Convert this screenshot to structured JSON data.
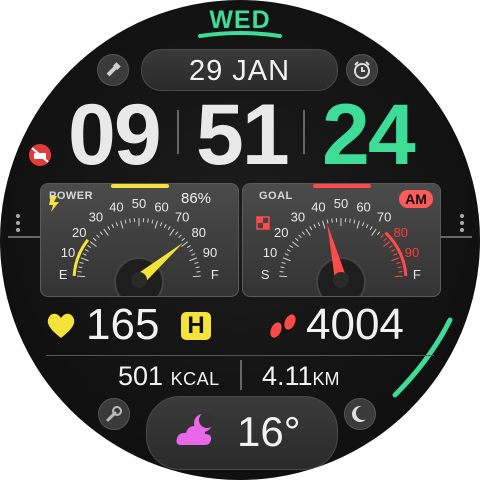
{
  "day": "WED",
  "date": "29 JAN",
  "time": {
    "hours": "09",
    "minutes": "51",
    "seconds": "24"
  },
  "power": {
    "title": "POWER",
    "percent": "86%",
    "value_percent": 86,
    "ticks": [
      "10",
      "20",
      "30",
      "40",
      "50",
      "60",
      "70",
      "80",
      "90"
    ],
    "end_left": "E",
    "end_right": "F"
  },
  "goal": {
    "title": "GOAL",
    "am_pm": "AM",
    "value_percent": 40,
    "ticks": [
      "10",
      "20",
      "30",
      "40",
      "50",
      "60",
      "70",
      "80",
      "90"
    ],
    "end_left": "S",
    "end_right": "F"
  },
  "heart_rate": {
    "value": "165",
    "zone": "H"
  },
  "steps": {
    "value": "4004"
  },
  "calories": {
    "value": "501",
    "unit": "KCAL"
  },
  "distance": {
    "value": "4.11",
    "unit": "KM"
  },
  "weather": {
    "temp": "16°",
    "icon": "cloud-moon-icon"
  },
  "colors": {
    "accent": "#3ddc97",
    "seconds": "#3ddc97",
    "power": "#f5e33a",
    "goal": "#ff4a4a",
    "heart": "#f5e33a",
    "steps": "#ff4a4a",
    "weather": "#e868e8"
  },
  "icons": [
    "flashlight-icon",
    "alarm-icon",
    "do-not-disturb-icon",
    "settings-icon",
    "moon-phase-icon",
    "lightning-icon",
    "heart-icon",
    "footsteps-icon"
  ]
}
